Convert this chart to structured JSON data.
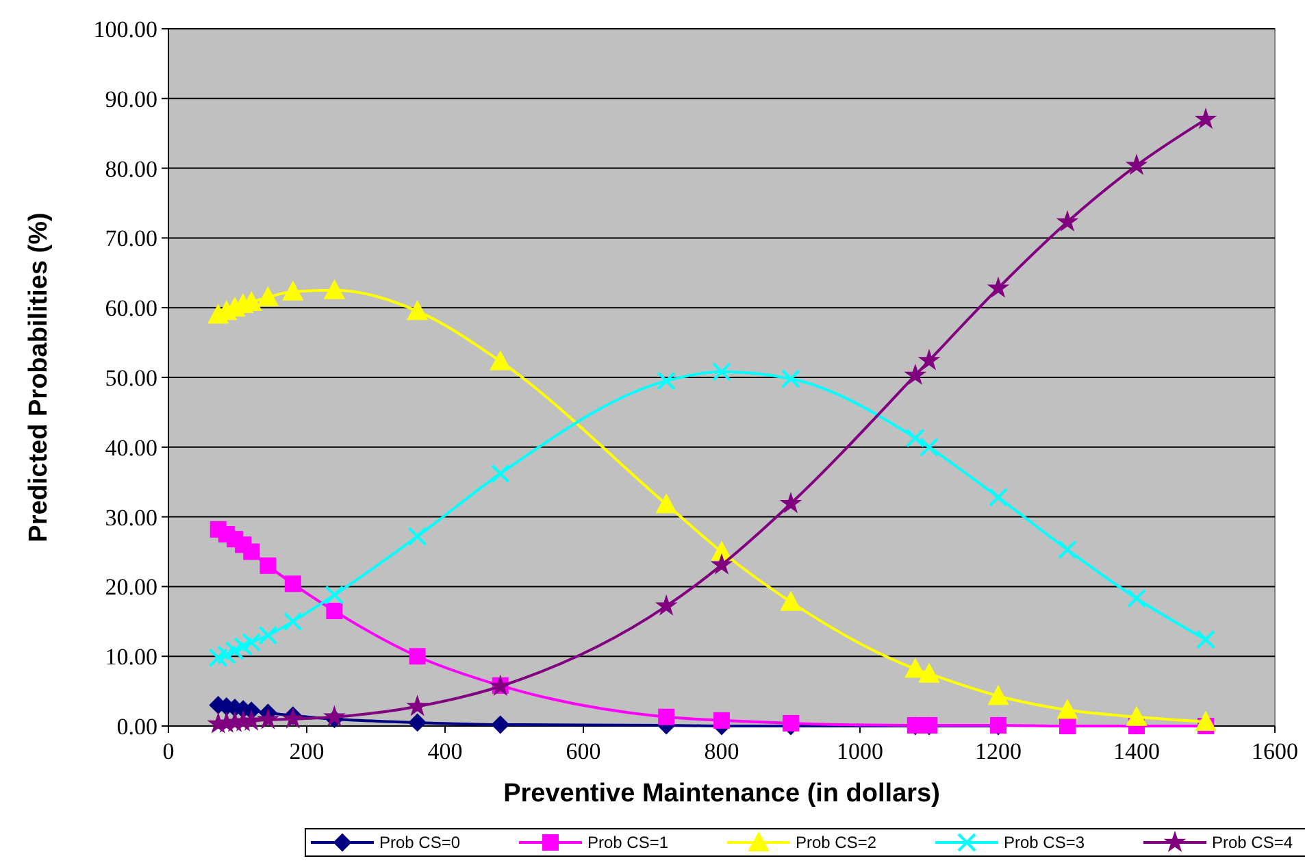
{
  "chart_data": {
    "type": "line",
    "xlabel": "Preventive Maintenance (in dollars)",
    "ylabel": "Predicted Probabilities (%)",
    "x": [
      72,
      84,
      96,
      108,
      120,
      144,
      180,
      240,
      360,
      480,
      720,
      800,
      900,
      1080,
      1100,
      1200,
      1300,
      1400,
      1500
    ],
    "xlim": [
      0,
      1600
    ],
    "xticks": [
      0,
      200,
      400,
      600,
      800,
      1000,
      1200,
      1400,
      1600
    ],
    "ylim": [
      0,
      100
    ],
    "yticks": [
      {
        "value": 0,
        "label": "0.00"
      },
      {
        "value": 10,
        "label": "10.00"
      },
      {
        "value": 20,
        "label": "20.00"
      },
      {
        "value": 30,
        "label": "30.00"
      },
      {
        "value": 40,
        "label": "40.00"
      },
      {
        "value": 50,
        "label": "50.00"
      },
      {
        "value": 60,
        "label": "60.00"
      },
      {
        "value": 70,
        "label": "70.00"
      },
      {
        "value": 80,
        "label": "80.00"
      },
      {
        "value": 90,
        "label": "90.00"
      },
      {
        "value": 100,
        "label": "100.00"
      }
    ],
    "grid": "y",
    "legend": "bottom",
    "series": [
      {
        "name": "Prob CS=0",
        "color": "#000080",
        "marker": "diamond",
        "values": [
          3.0,
          2.8,
          2.6,
          2.4,
          2.2,
          1.9,
          1.5,
          1.0,
          0.5,
          0.2,
          0.1,
          0.0,
          0.0,
          0.0,
          0.0,
          0.0,
          null,
          null,
          null
        ]
      },
      {
        "name": "Prob CS=1",
        "color": "#ff00ff",
        "marker": "square",
        "values": [
          28.2,
          27.5,
          26.8,
          26.0,
          25.0,
          23.0,
          20.4,
          16.5,
          10.0,
          5.8,
          1.3,
          0.8,
          0.4,
          0.1,
          0.1,
          0.1,
          0.0,
          0.0,
          0.0
        ]
      },
      {
        "name": "Prob CS=2",
        "color": "#ffff00",
        "marker": "triangle",
        "values": [
          59.0,
          59.5,
          60.0,
          60.5,
          60.8,
          61.5,
          62.3,
          62.5,
          59.5,
          52.3,
          31.8,
          25.0,
          17.8,
          8.2,
          7.5,
          4.3,
          2.3,
          1.3,
          0.6
        ]
      },
      {
        "name": "Prob CS=3",
        "color": "#00ffff",
        "marker": "cross",
        "values": [
          9.8,
          10.2,
          10.8,
          11.4,
          12.0,
          13.0,
          15.0,
          18.8,
          27.2,
          36.2,
          49.5,
          50.8,
          49.8,
          41.3,
          40.0,
          32.8,
          25.3,
          18.3,
          12.4
        ]
      },
      {
        "name": "Prob CS=4",
        "color": "#800080",
        "marker": "star",
        "values": [
          0.3,
          0.4,
          0.5,
          0.6,
          0.7,
          0.9,
          1.0,
          1.3,
          2.8,
          5.7,
          17.2,
          23.1,
          31.9,
          50.3,
          52.4,
          62.8,
          72.3,
          80.4,
          87.0
        ]
      }
    ]
  }
}
